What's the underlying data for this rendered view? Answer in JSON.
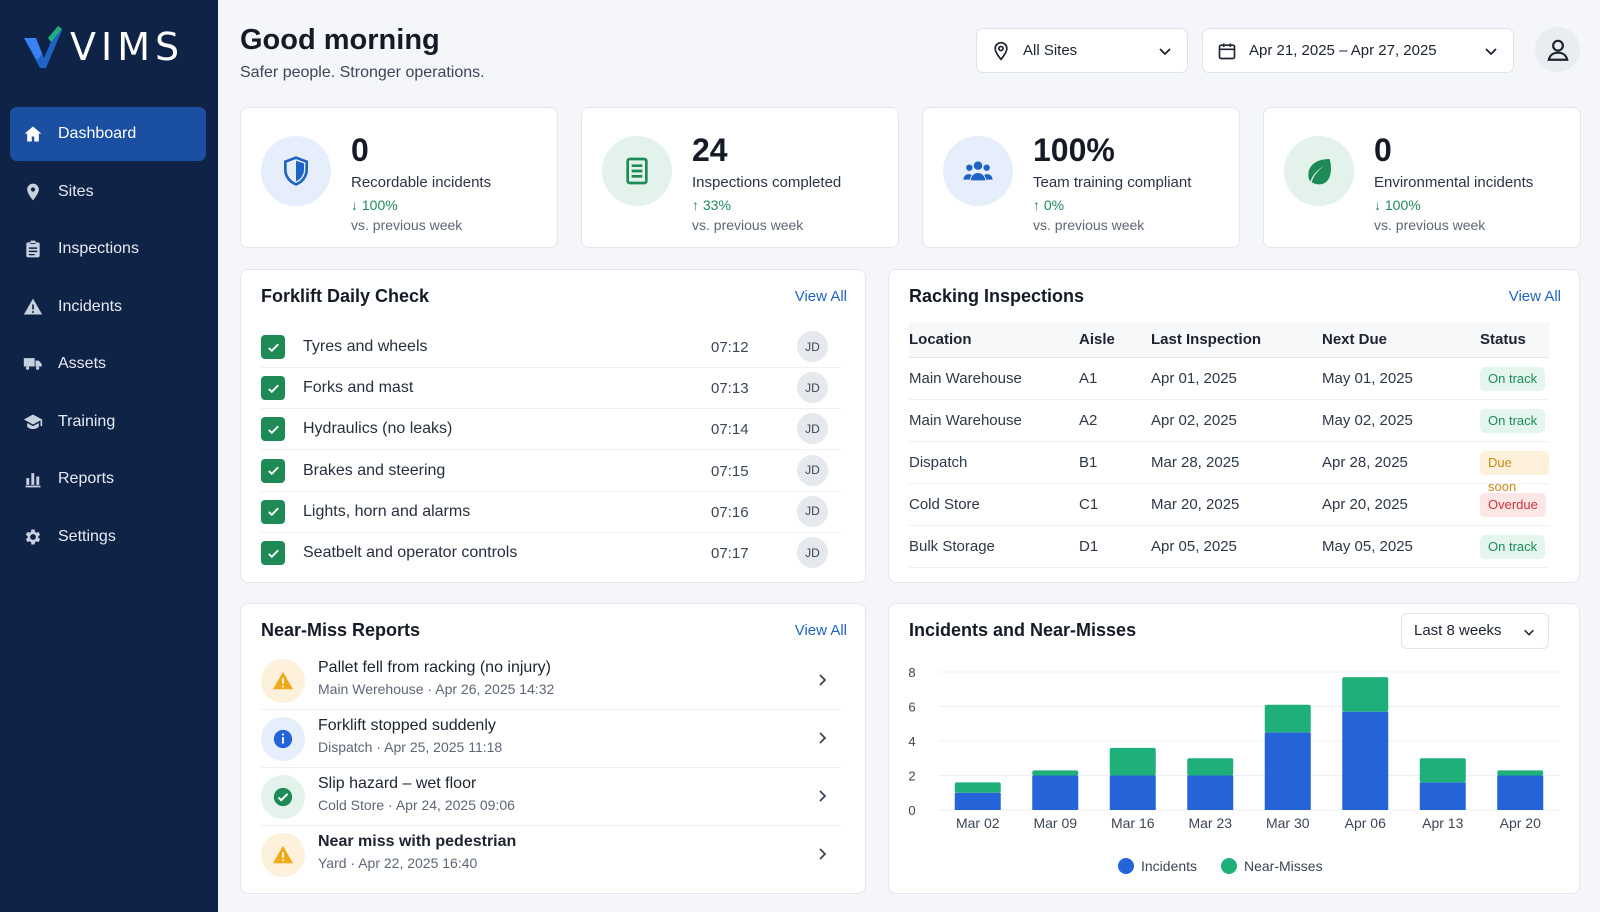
{
  "brand": {
    "logo_text": "VIMS"
  },
  "nav": [
    {
      "label": "Dashboard",
      "icon": "home-icon",
      "active": true
    },
    {
      "label": "Sites",
      "icon": "map-pin-icon"
    },
    {
      "label": "Inspections",
      "icon": "clipboard-icon"
    },
    {
      "label": "Incidents",
      "icon": "warning-icon"
    },
    {
      "label": "Assets",
      "icon": "truck-icon"
    },
    {
      "label": "Training",
      "icon": "graduation-cap-icon"
    },
    {
      "label": "Reports",
      "icon": "bar-chart-icon"
    },
    {
      "label": "Settings",
      "icon": "gear-icon"
    }
  ],
  "header": {
    "greeting": "Good morning",
    "tagline": "Safer people. Stronger operations.",
    "site_filter": "All Sites",
    "date_range": "Apr 21, 2025 – Apr 27, 2025"
  },
  "kpis": [
    {
      "value": "0",
      "label": "Recordable incidents",
      "change": "↓ 100%",
      "sub": "vs. previous week",
      "icon": "shield-icon",
      "color": "#1f63c6",
      "bg": "#e6eefb"
    },
    {
      "value": "24",
      "label": "Inspections completed",
      "change": "↑ 33%",
      "sub": "vs. previous week",
      "icon": "document-icon",
      "color": "#1e8a56",
      "bg": "#e3f3ec"
    },
    {
      "value": "100%",
      "label": "Team training compliant",
      "change": "↑ 0%",
      "sub": "vs. previous week",
      "icon": "team-icon",
      "color": "#1f63c6",
      "bg": "#e6eefb"
    },
    {
      "value": "0",
      "label": "Environmental incidents",
      "change": "↓ 100%",
      "sub": "vs. previous week",
      "icon": "leaf-icon",
      "color": "#1e8a56",
      "bg": "#e3f3ec"
    }
  ],
  "forklift": {
    "title": "Forklift Daily Check",
    "view_all": "View All",
    "items": [
      {
        "label": "Tyres and wheels",
        "time": "07:12",
        "initials": "JD"
      },
      {
        "label": "Forks and mast",
        "time": "07:13",
        "initials": "JD"
      },
      {
        "label": "Hydraulics (no leaks)",
        "time": "07:14",
        "initials": "JD"
      },
      {
        "label": "Brakes and steering",
        "time": "07:15",
        "initials": "JD"
      },
      {
        "label": "Lights, horn and alarms",
        "time": "07:16",
        "initials": "JD"
      },
      {
        "label": "Seatbelt and operator controls",
        "time": "07:17",
        "initials": "JD"
      }
    ]
  },
  "racking": {
    "title": "Racking Inspections",
    "view_all": "View All",
    "columns": [
      "Location",
      "Aisle",
      "Last Inspection",
      "Next Due",
      "Status"
    ],
    "rows": [
      {
        "location": "Main Warehouse",
        "aisle": "A1",
        "last": "Apr 01, 2025",
        "next": "May 01, 2025",
        "status": "On track",
        "status_kind": "ok"
      },
      {
        "location": "Main Warehouse",
        "aisle": "A2",
        "last": "Apr 02, 2025",
        "next": "May 02, 2025",
        "status": "On track",
        "status_kind": "ok"
      },
      {
        "location": "Dispatch",
        "aisle": "B1",
        "last": "Mar 28, 2025",
        "next": "Apr 28, 2025",
        "status": "Due soon",
        "status_kind": "warn"
      },
      {
        "location": "Cold Store",
        "aisle": "C1",
        "last": "Mar 20, 2025",
        "next": "Apr 20, 2025",
        "status": "Overdue",
        "status_kind": "bad"
      },
      {
        "location": "Bulk Storage",
        "aisle": "D1",
        "last": "Apr 05, 2025",
        "next": "May 05, 2025",
        "status": "On track",
        "status_kind": "ok"
      }
    ]
  },
  "near_miss": {
    "title": "Near-Miss Reports",
    "view_all": "View All",
    "items": [
      {
        "title": "Pallet fell from racking (no injury)",
        "meta": "Main Werehouse · Apr 26, 2025 14:32",
        "icon": "warning-icon",
        "kind": "warn"
      },
      {
        "title": "Forklift stopped suddenly",
        "meta": "Dispatch · Apr 25, 2025 11:18",
        "icon": "info-icon",
        "kind": "info"
      },
      {
        "title": "Slip hazard – wet floor",
        "meta": "Cold Store · Apr 24, 2025 09:06",
        "icon": "check-circle-icon",
        "kind": "ok"
      },
      {
        "title": "Near miss with pedestrian",
        "meta": "Yard · Apr 22, 2025 16:40",
        "icon": "warning-icon",
        "kind": "warn"
      }
    ]
  },
  "incidents_panel": {
    "title": "Incidents and Near-Misses",
    "range": "Last 8 weeks"
  },
  "colors": {
    "incidents": "#2563d9",
    "near_misses": "#1fb07a",
    "ok_bg": "#e3f5ec",
    "ok_fg": "#1e8a56",
    "warn_bg": "#fdf1dc",
    "warn_fg": "#c98a12",
    "bad_bg": "#fde6e6",
    "bad_fg": "#c9343a"
  },
  "chart_data": {
    "type": "bar",
    "stacked": true,
    "categories": [
      "Mar 02",
      "Mar 09",
      "Mar 16",
      "Mar 23",
      "Mar 30",
      "Apr 06",
      "Apr 13",
      "Apr 20"
    ],
    "series": [
      {
        "name": "Incidents",
        "values": [
          1,
          2,
          2,
          2,
          4.5,
          5.7,
          1.6,
          2
        ]
      },
      {
        "name": "Near-Misses",
        "values": [
          0.6,
          0.3,
          1.6,
          1,
          1.6,
          2,
          1.4,
          0.3
        ]
      }
    ],
    "ylim": [
      0,
      8
    ],
    "yticks": [
      "0",
      "2",
      "4",
      "6",
      "8"
    ],
    "grid": true,
    "legend": "bottom"
  }
}
